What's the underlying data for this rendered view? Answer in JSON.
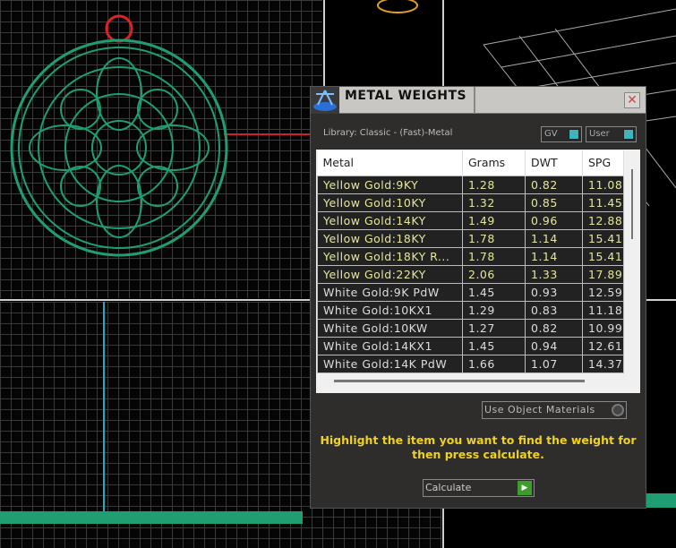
{
  "panel": {
    "title": "METAL WEIGHTS",
    "close_icon": "close-icon",
    "library": "Library: Classic - (Fast)-Metal",
    "toggles": [
      {
        "label": "GV",
        "on": true
      },
      {
        "label": "User",
        "on": true
      }
    ],
    "table": {
      "headers": [
        "Metal",
        "Grams",
        "DWT",
        "SPG"
      ],
      "rows": [
        [
          "Yellow Gold:9KY",
          "1.28",
          "0.82",
          "11.08"
        ],
        [
          "Yellow Gold:10KY",
          "1.32",
          "0.85",
          "11.45"
        ],
        [
          "Yellow Gold:14KY",
          "1.49",
          "0.96",
          "12.88"
        ],
        [
          "Yellow Gold:18KY",
          "1.78",
          "1.14",
          "15.41"
        ],
        [
          "Yellow Gold:18KY R...",
          "1.78",
          "1.14",
          "15.41"
        ],
        [
          "Yellow Gold:22KY",
          "2.06",
          "1.33",
          "17.89"
        ],
        [
          "White Gold:9K PdW",
          "1.45",
          "0.93",
          "12.59"
        ],
        [
          "White Gold:10KX1",
          "1.29",
          "0.83",
          "11.18"
        ],
        [
          "White Gold:10KW",
          "1.27",
          "0.82",
          "10.99"
        ],
        [
          "White Gold:14KX1",
          "1.45",
          "0.94",
          "12.61"
        ],
        [
          "White Gold:14K PdW",
          "1.66",
          "1.07",
          "14.37"
        ]
      ]
    },
    "use_object_materials": "Use Object Materials",
    "hint": "Highlight the item you want to find the weight for then press calculate.",
    "calculate": "Calculate",
    "colors": {
      "hint": "#f0d21c",
      "toggle": "#3fb4bd",
      "go": "#3c9c2c",
      "pendant": "#1f9e72"
    }
  }
}
